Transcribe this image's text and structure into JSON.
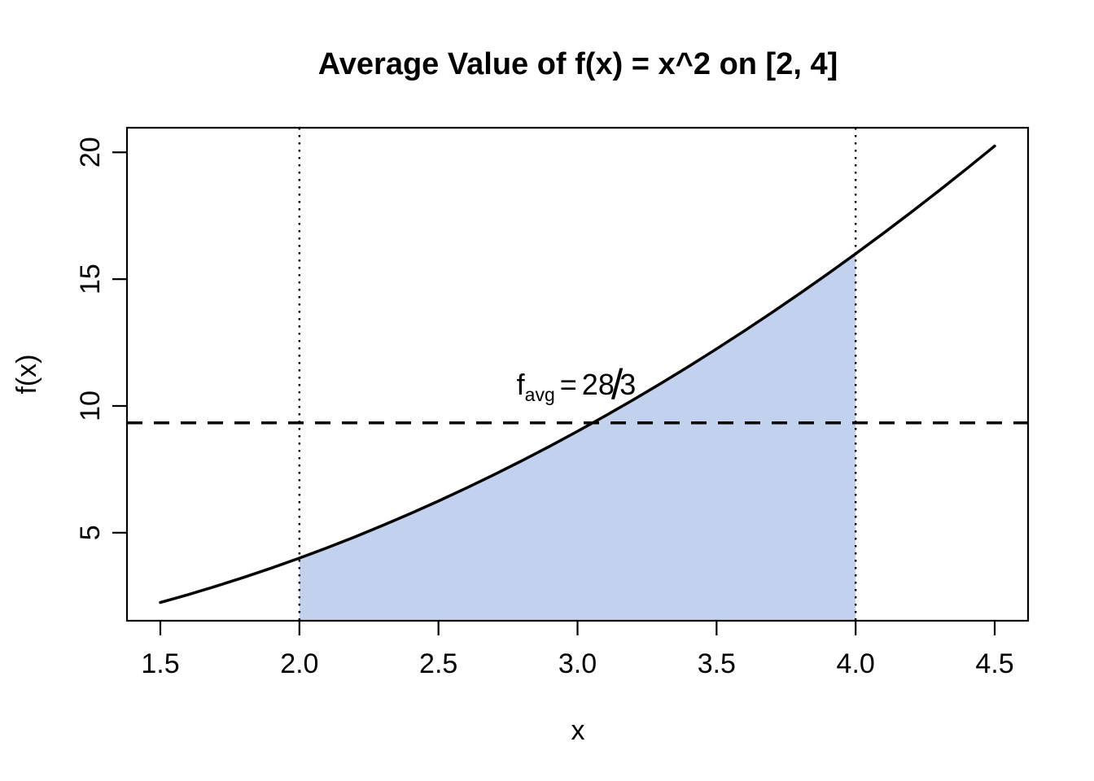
{
  "chart_data": {
    "type": "area",
    "title": "Average Value of f(x) = x^2 on [2, 4]",
    "xlabel": "x",
    "ylabel": "f(x)",
    "function": "f(x) = x^2",
    "x": [
      1.5,
      1.6,
      1.7,
      1.8,
      1.9,
      2.0,
      2.1,
      2.2,
      2.3,
      2.4,
      2.5,
      2.6,
      2.7,
      2.8,
      2.9,
      3.0,
      3.1,
      3.2,
      3.3,
      3.4,
      3.5,
      3.6,
      3.7,
      3.8,
      3.9,
      4.0,
      4.1,
      4.2,
      4.3,
      4.4,
      4.5
    ],
    "y": [
      2.25,
      2.56,
      2.89,
      3.24,
      3.61,
      4.0,
      4.41,
      4.84,
      5.29,
      5.76,
      6.25,
      6.76,
      7.29,
      7.84,
      8.41,
      9.0,
      9.61,
      10.24,
      10.89,
      11.56,
      12.25,
      12.96,
      13.69,
      14.44,
      15.21,
      16.0,
      16.81,
      17.64,
      18.49,
      19.36,
      20.25
    ],
    "xlim": [
      1.38,
      4.62
    ],
    "ylim": [
      1.53,
      20.97
    ],
    "x_tick_values": [
      1.5,
      2.0,
      2.5,
      3.0,
      3.5,
      4.0,
      4.5
    ],
    "x_ticks": [
      "1.5",
      "2.0",
      "2.5",
      "3.0",
      "3.5",
      "4.0",
      "4.5"
    ],
    "y_tick_values": [
      5,
      10,
      15,
      20
    ],
    "y_ticks": [
      "5",
      "10",
      "15",
      "20"
    ],
    "grid": false,
    "legend": "none",
    "shaded_region": {
      "from": 2,
      "to": 4,
      "fill": "#C2D1EE"
    },
    "vlines": {
      "values": [
        2,
        4
      ],
      "style": "dotted",
      "color": "#000000"
    },
    "hline": {
      "value": 9.3333,
      "style": "dashed",
      "color": "#000000"
    },
    "average_value_text": "f_avg = 28/3",
    "annotation": {
      "f": "f",
      "sub": "avg",
      "eq": "=",
      "num": "28",
      "slash": "/",
      "den": "3"
    },
    "colors": {
      "curve": "#000000",
      "fill": "#C2D1EE",
      "axis": "#000000",
      "background": "#ffffff"
    }
  }
}
